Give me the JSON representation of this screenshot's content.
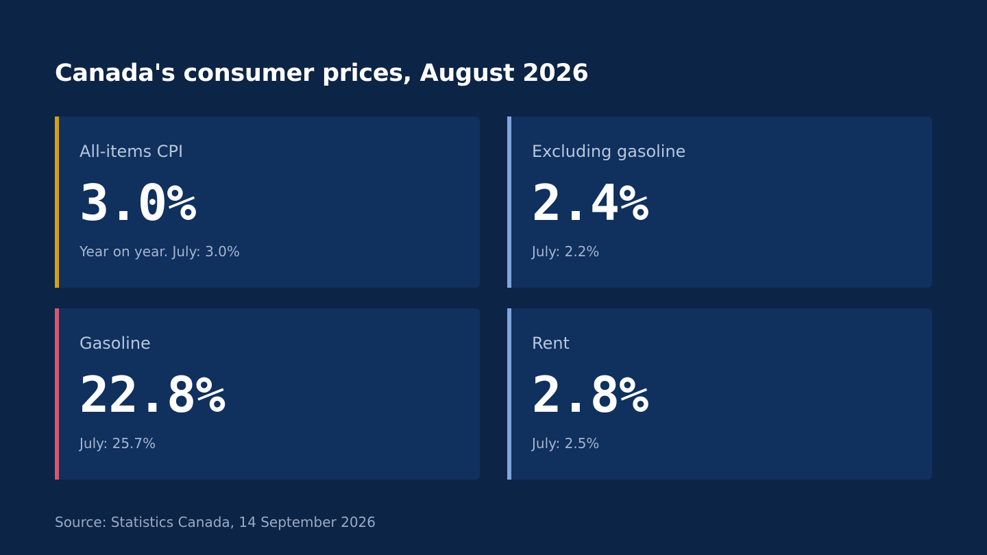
{
  "title": "Canada's consumer prices, August 2026",
  "cards": [
    {
      "label": "All-items CPI",
      "value": "3.0%",
      "note": "Year on year. July: 3.0%",
      "accent": "#d4a017"
    },
    {
      "label": "Excluding gasoline",
      "value": "2.4%",
      "note": "July: 2.2%",
      "accent": "#7ea7de"
    },
    {
      "label": "Gasoline",
      "value": "22.8%",
      "note": "July: 25.7%",
      "accent": "#d9556f"
    },
    {
      "label": "Rent",
      "value": "2.8%",
      "note": "July: 2.5%",
      "accent": "#7ea7de"
    }
  ],
  "source": "Source: Statistics Canada, 14 September 2026"
}
